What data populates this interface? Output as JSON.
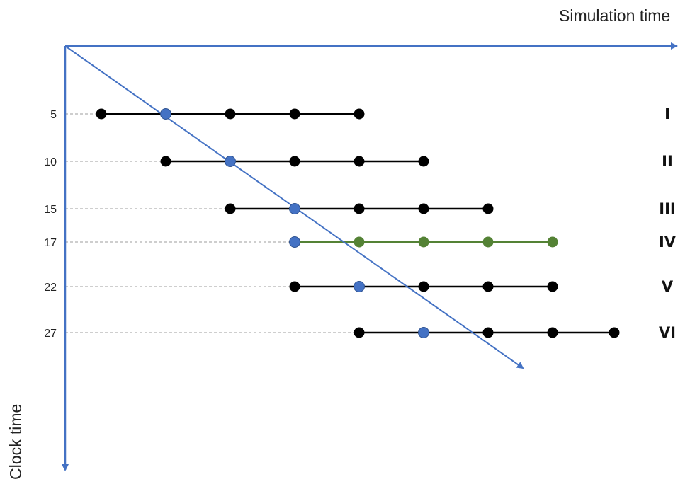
{
  "axes": {
    "x_title": "Simulation time",
    "y_title": "Clock time",
    "axis_color": "#4472c4"
  },
  "colors": {
    "default_line": "#000000",
    "default_point": "#000000",
    "highlight_point": "#4472c4",
    "alt_series": "#548235",
    "guide_line": "#b0b0b0",
    "diagonal": "#4472c4"
  },
  "rows": [
    {
      "label": "I",
      "clock": "5",
      "start": 0,
      "points": 5,
      "highlight": 1,
      "color": "default"
    },
    {
      "label": "II",
      "clock": "10",
      "start": 1,
      "points": 5,
      "highlight": 1,
      "color": "default"
    },
    {
      "label": "III",
      "clock": "15",
      "start": 2,
      "points": 5,
      "highlight": 1,
      "color": "default"
    },
    {
      "label": "IV",
      "clock": "17",
      "start": 3,
      "points": 5,
      "highlight": 0,
      "color": "alt"
    },
    {
      "label": "V",
      "clock": "22",
      "start": 3,
      "points": 5,
      "highlight": 1,
      "color": "default"
    },
    {
      "label": "VI",
      "clock": "27",
      "start": 4,
      "points": 5,
      "highlight": 1,
      "color": "default"
    }
  ]
}
